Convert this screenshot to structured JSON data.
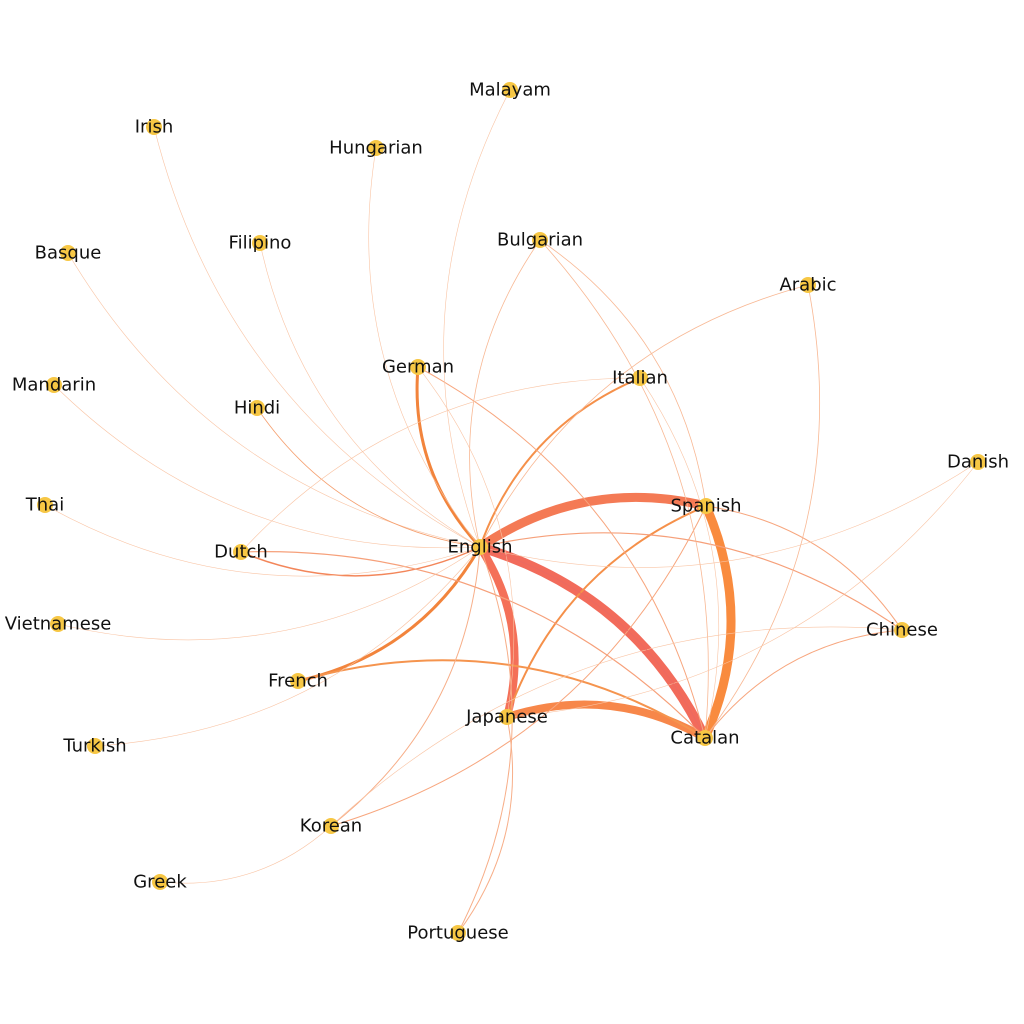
{
  "network": {
    "node_color": "#F7C744",
    "nodes": [
      {
        "id": "English",
        "label": "English"
      },
      {
        "id": "Spanish",
        "label": "Spanish"
      },
      {
        "id": "Catalan",
        "label": "Catalan"
      },
      {
        "id": "Japanese",
        "label": "Japanese"
      },
      {
        "id": "Chinese",
        "label": "Chinese"
      },
      {
        "id": "French",
        "label": "French"
      },
      {
        "id": "Dutch",
        "label": "Dutch"
      },
      {
        "id": "German",
        "label": "German"
      },
      {
        "id": "Italian",
        "label": "Italian"
      },
      {
        "id": "Korean",
        "label": "Korean"
      },
      {
        "id": "Portuguese",
        "label": "Portuguese"
      },
      {
        "id": "Bulgarian",
        "label": "Bulgarian"
      },
      {
        "id": "Arabic",
        "label": "Arabic"
      },
      {
        "id": "Danish",
        "label": "Danish"
      },
      {
        "id": "Malayam",
        "label": "Malayam"
      },
      {
        "id": "Hungarian",
        "label": "Hungarian"
      },
      {
        "id": "Irish",
        "label": "Irish"
      },
      {
        "id": "Filipino",
        "label": "Filipino"
      },
      {
        "id": "Basque",
        "label": "Basque"
      },
      {
        "id": "Mandarin",
        "label": "Mandarin"
      },
      {
        "id": "Hindi",
        "label": "Hindi"
      },
      {
        "id": "Thai",
        "label": "Thai"
      },
      {
        "id": "Vietnamese",
        "label": "Vietnamese"
      },
      {
        "id": "Turkish",
        "label": "Turkish"
      },
      {
        "id": "Greek",
        "label": "Greek"
      }
    ],
    "edges": [
      {
        "source": "English",
        "target": "Catalan",
        "weight": 10,
        "color": "#F26B5B"
      },
      {
        "source": "English",
        "target": "Spanish",
        "weight": 9,
        "color": "#F47A55"
      },
      {
        "source": "Spanish",
        "target": "Catalan",
        "weight": 9,
        "color": "#F98B3E"
      },
      {
        "source": "Japanese",
        "target": "Catalan",
        "weight": 8,
        "color": "#F7874A"
      },
      {
        "source": "English",
        "target": "Japanese",
        "weight": 8,
        "color": "#F47058"
      },
      {
        "source": "English",
        "target": "German",
        "weight": 3,
        "color": "#F2843C"
      },
      {
        "source": "English",
        "target": "French",
        "weight": 3,
        "color": "#F2843C"
      },
      {
        "source": "English",
        "target": "Italian",
        "weight": 2,
        "color": "#F5904A"
      },
      {
        "source": "Japanese",
        "target": "Spanish",
        "weight": 2,
        "color": "#F5904A"
      },
      {
        "source": "French",
        "target": "Catalan",
        "weight": 2,
        "color": "#F5944E"
      },
      {
        "source": "English",
        "target": "Dutch",
        "weight": 1.5,
        "color": "#F3865A"
      },
      {
        "source": "English",
        "target": "Chinese",
        "weight": 1.2,
        "color": "#F6A07A"
      },
      {
        "source": "Spanish",
        "target": "Chinese",
        "weight": 1,
        "color": "#F7A67E"
      },
      {
        "source": "Catalan",
        "target": "Chinese",
        "weight": 1,
        "color": "#F7A67E"
      },
      {
        "source": "Spanish",
        "target": "Korean",
        "weight": 1,
        "color": "#F7A67E"
      },
      {
        "source": "Dutch",
        "target": "Catalan",
        "weight": 1.2,
        "color": "#F6A07A"
      },
      {
        "source": "German",
        "target": "Catalan",
        "weight": 1,
        "color": "#F7A67E"
      },
      {
        "source": "English",
        "target": "Korean",
        "weight": 1,
        "color": "#F7AE88"
      },
      {
        "source": "English",
        "target": "Portuguese",
        "weight": 1,
        "color": "#F7AE88"
      },
      {
        "source": "Japanese",
        "target": "Portuguese",
        "weight": 1,
        "color": "#F7AE88"
      },
      {
        "source": "English",
        "target": "Bulgarian",
        "weight": 0.8,
        "color": "#F8B894"
      },
      {
        "source": "Bulgarian",
        "target": "Catalan",
        "weight": 0.8,
        "color": "#F8B894"
      },
      {
        "source": "Bulgarian",
        "target": "Spanish",
        "weight": 0.8,
        "color": "#F8B894"
      },
      {
        "source": "English",
        "target": "Arabic",
        "weight": 0.8,
        "color": "#F8B894"
      },
      {
        "source": "Arabic",
        "target": "Catalan",
        "weight": 0.8,
        "color": "#F8B894"
      },
      {
        "source": "English",
        "target": "Malayam",
        "weight": 0.6,
        "color": "#F9C4A4"
      },
      {
        "source": "English",
        "target": "Hungarian",
        "weight": 0.6,
        "color": "#F9C4A4"
      },
      {
        "source": "English",
        "target": "Irish",
        "weight": 0.6,
        "color": "#F9C4A4"
      },
      {
        "source": "English",
        "target": "Filipino",
        "weight": 0.6,
        "color": "#F9C4A4"
      },
      {
        "source": "English",
        "target": "Basque",
        "weight": 0.6,
        "color": "#F9C4A4"
      },
      {
        "source": "English",
        "target": "Mandarin",
        "weight": 0.6,
        "color": "#F9C4A4"
      },
      {
        "source": "English",
        "target": "Hindi",
        "weight": 0.8,
        "color": "#F5A070"
      },
      {
        "source": "English",
        "target": "Thai",
        "weight": 0.6,
        "color": "#F9C4A4"
      },
      {
        "source": "English",
        "target": "Vietnamese",
        "weight": 0.6,
        "color": "#F9C4A4"
      },
      {
        "source": "English",
        "target": "Turkish",
        "weight": 0.6,
        "color": "#F9C4A4"
      },
      {
        "source": "Korean",
        "target": "Greek",
        "weight": 0.6,
        "color": "#F9C4A4"
      },
      {
        "source": "Danish",
        "target": "Japanese",
        "weight": 0.6,
        "color": "#F9C4A4"
      },
      {
        "source": "Danish",
        "target": "English",
        "weight": 0.6,
        "color": "#F9C4A4"
      },
      {
        "source": "Korean",
        "target": "Chinese",
        "weight": 0.6,
        "color": "#F9C4A4"
      },
      {
        "source": "Dutch",
        "target": "Italian",
        "weight": 0.6,
        "color": "#F9C4A4"
      },
      {
        "source": "Italian",
        "target": "Catalan",
        "weight": 0.6,
        "color": "#F9C4A4"
      },
      {
        "source": "German",
        "target": "Japanese",
        "weight": 0.6,
        "color": "#F9C4A4"
      },
      {
        "source": "English",
        "target": "Catalan",
        "weight": 0.8,
        "color": "#EA6A63"
      }
    ]
  }
}
